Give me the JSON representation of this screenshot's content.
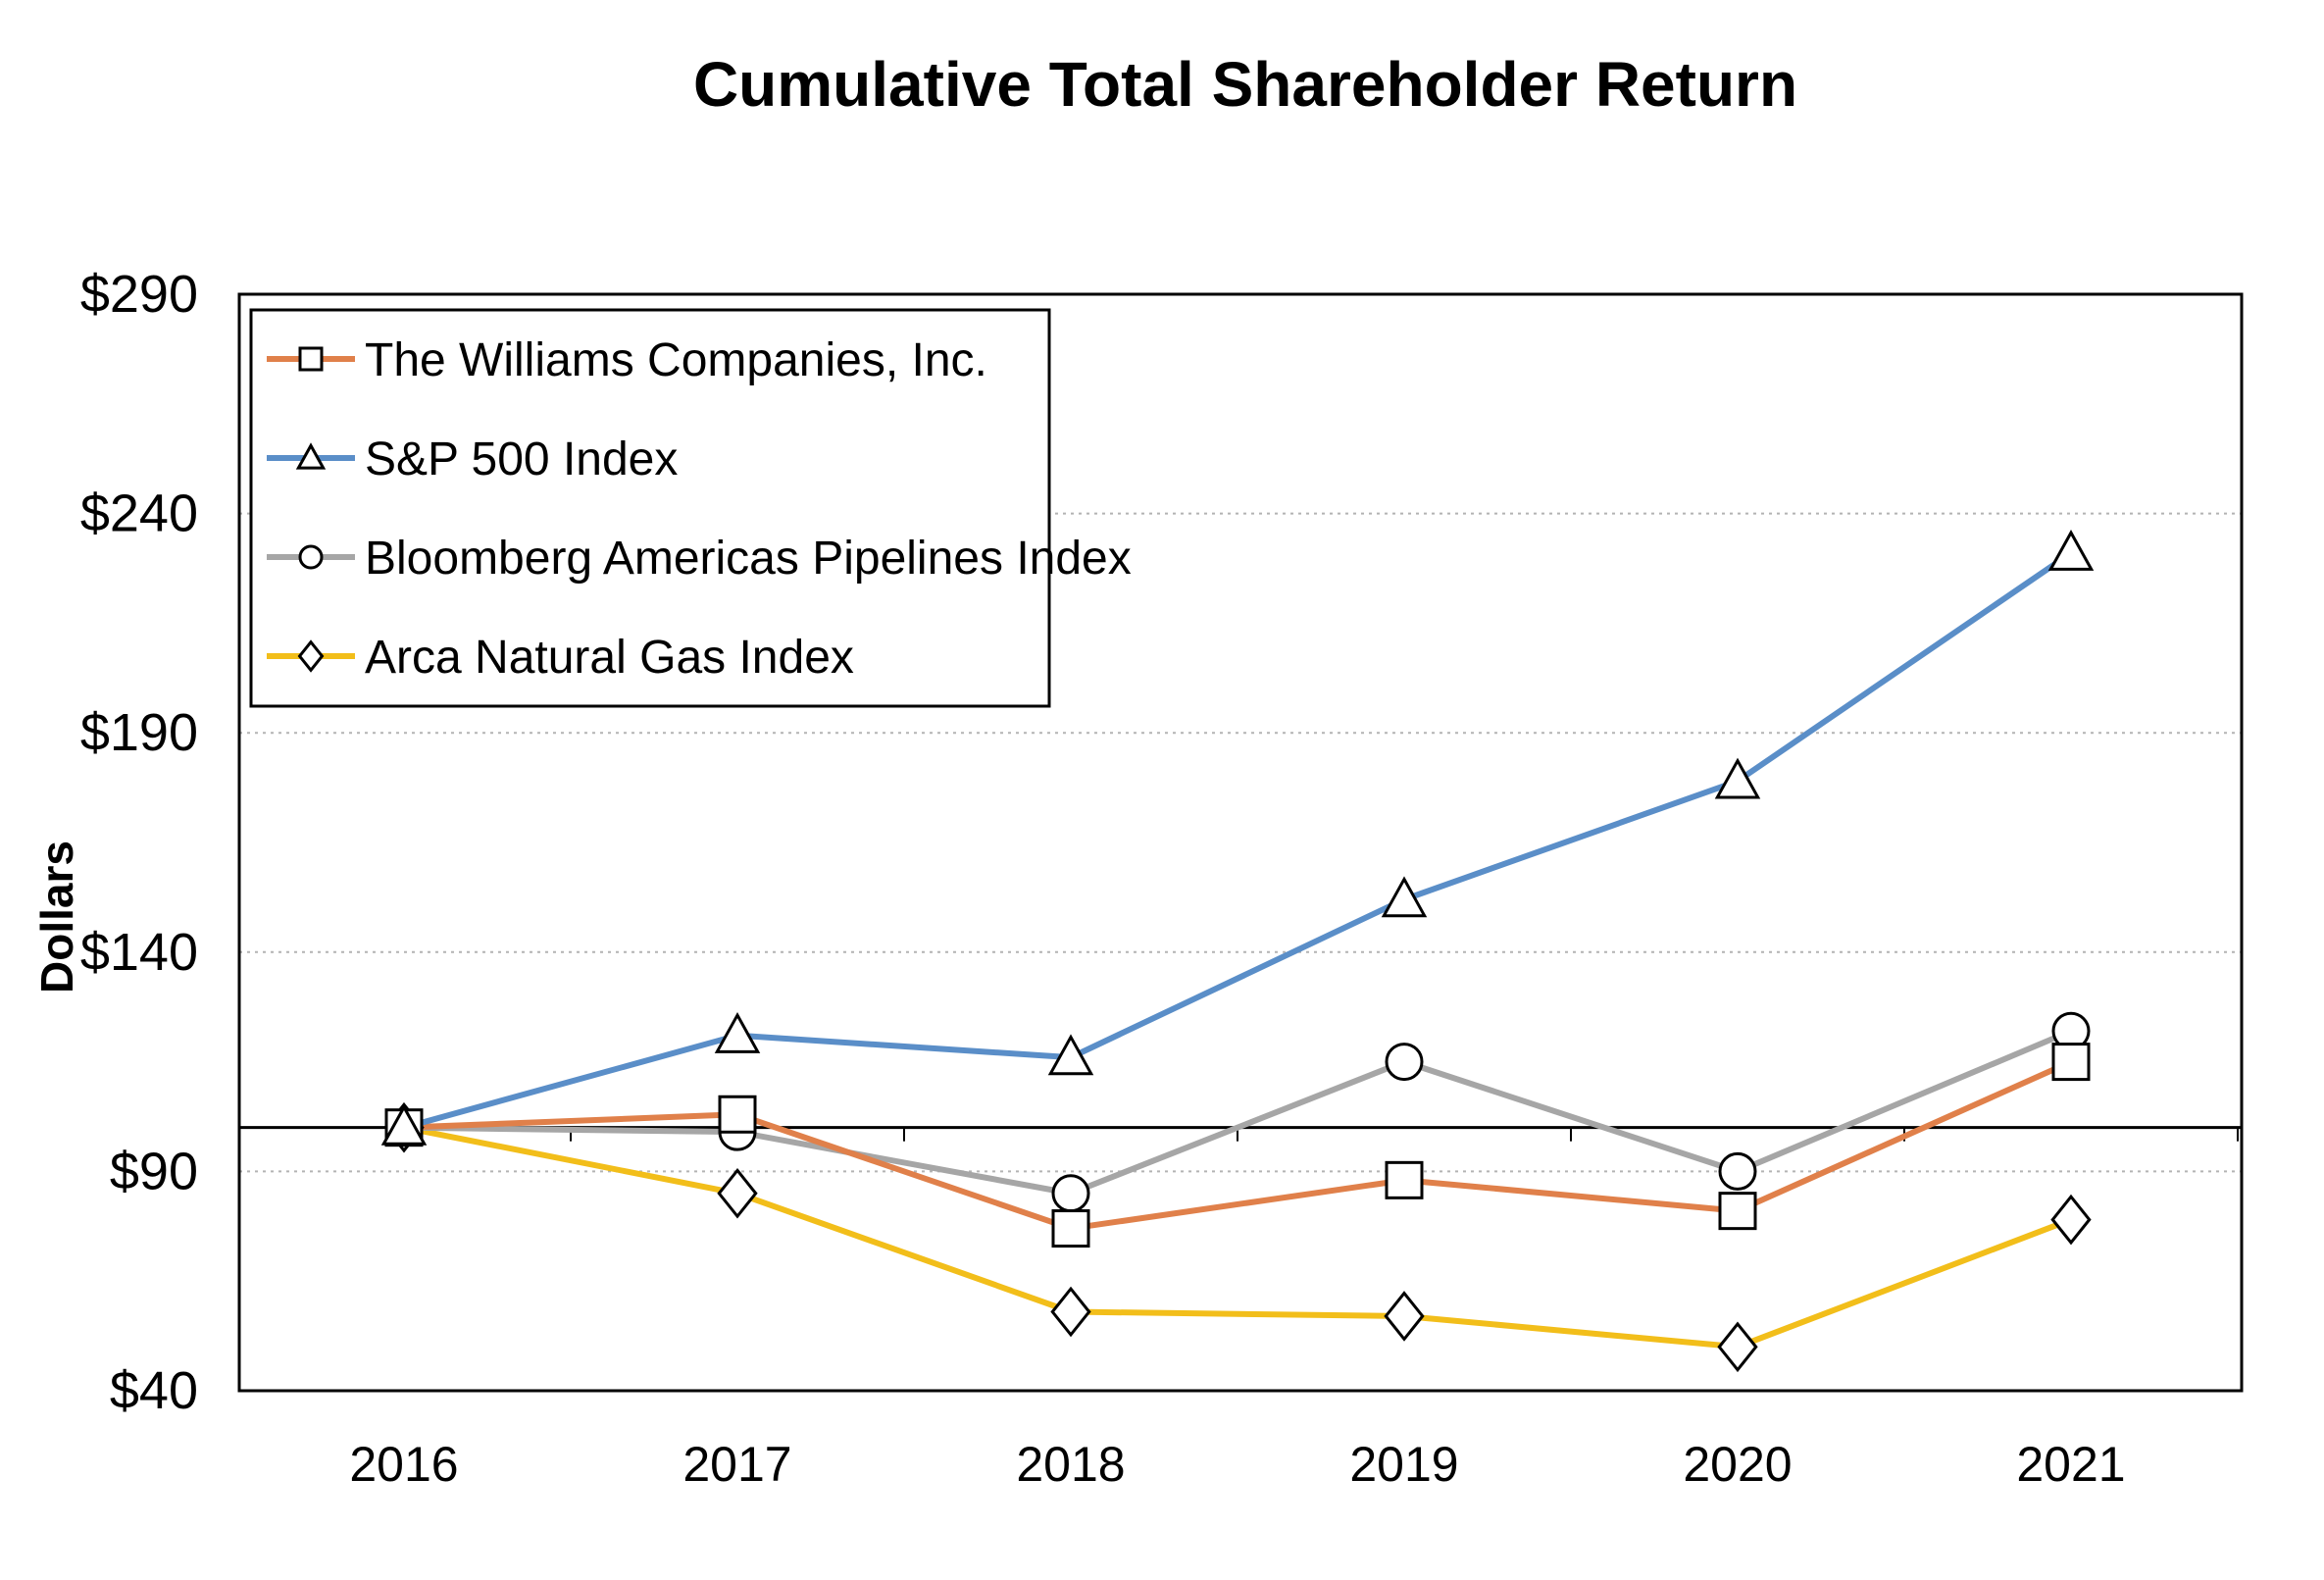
{
  "chart_data": {
    "type": "line",
    "title": "Cumulative  Total Shareholder Return",
    "xlabel": "",
    "ylabel": "Dollars",
    "categories": [
      "2016",
      "2017",
      "2018",
      "2019",
      "2020",
      "2021"
    ],
    "ylim": [
      40,
      290
    ],
    "yticks": [
      40,
      90,
      140,
      190,
      240,
      290
    ],
    "ytick_labels": [
      "$40",
      "$90",
      "$140",
      "$190",
      "$240",
      "$290"
    ],
    "baseline": 100,
    "grid": "dotted horizontal",
    "legend_position": "top-left",
    "series": [
      {
        "name": "The Williams Companies, Inc.",
        "marker": "square",
        "color": "#E0804A",
        "values": [
          100,
          103,
          77,
          88,
          81,
          115
        ]
      },
      {
        "name": "S&P 500 Index",
        "marker": "triangle",
        "color": "#5A8EC8",
        "values": [
          100,
          121,
          116,
          152,
          179,
          231
        ]
      },
      {
        "name": "Bloomberg Americas Pipelines Index",
        "marker": "circle",
        "color": "#A6A6A6",
        "values": [
          100,
          99,
          85,
          115,
          90,
          122
        ]
      },
      {
        "name": "Arca Natural Gas Index",
        "marker": "diamond",
        "color": "#F2BE1A",
        "values": [
          100,
          85,
          58,
          57,
          50,
          79
        ]
      }
    ]
  }
}
